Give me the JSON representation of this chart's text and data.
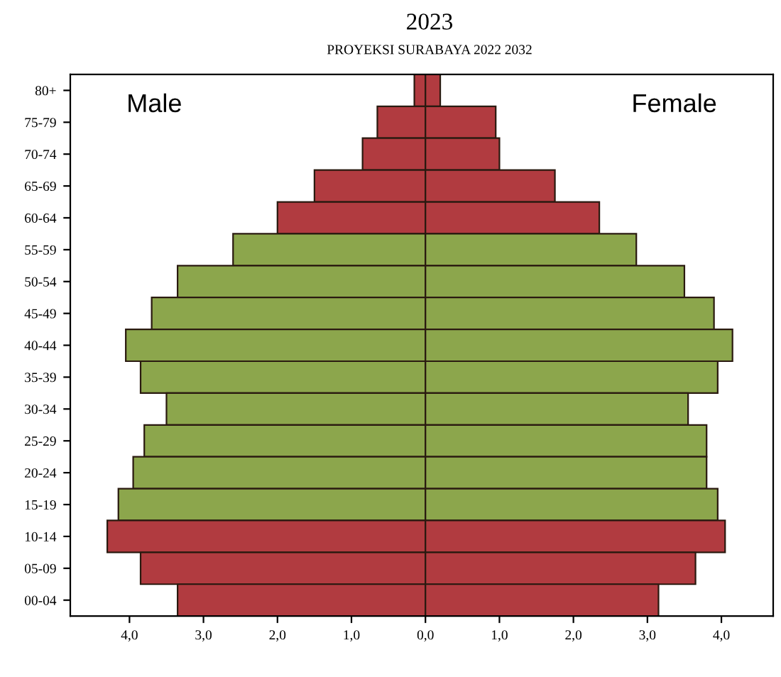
{
  "chart_data": {
    "type": "bar",
    "orientation": "horizontal",
    "title": "2023",
    "subtitle": "PROYEKSI SURABAYA 2022 2032",
    "stacked": true,
    "annotations": [
      "Male",
      "Female"
    ],
    "categories": [
      "80+",
      "75-79",
      "70-74",
      "65-69",
      "60-64",
      "55-59",
      "50-54",
      "45-49",
      "40-44",
      "35-39",
      "30-34",
      "25-29",
      "20-24",
      "15-19",
      "10-14",
      "05-09",
      "00-04"
    ],
    "series": [
      {
        "values": [
          -0.15,
          -0.65,
          -0.85,
          -1.5,
          -2.0,
          -2.6,
          -3.35,
          -3.7,
          -4.05,
          -3.85,
          -3.5,
          -3.8,
          -3.95,
          -4.15,
          -4.3,
          -3.85,
          -3.35
        ],
        "colors": [
          "#b13b40",
          "#b13b40",
          "#b13b40",
          "#b13b40",
          "#b13b40",
          "#8ca64c",
          "#8ca64c",
          "#8ca64c",
          "#8ca64c",
          "#8ca64c",
          "#8ca64c",
          "#8ca64c",
          "#8ca64c",
          "#8ca64c",
          "#b13b40",
          "#b13b40",
          "#b13b40"
        ]
      },
      {
        "values": [
          0.2,
          0.95,
          1.0,
          1.75,
          2.35,
          2.85,
          3.5,
          3.9,
          4.15,
          3.95,
          3.55,
          3.8,
          3.8,
          3.95,
          4.05,
          3.65,
          3.15
        ],
        "colors": [
          "#b13b40",
          "#b13b40",
          "#b13b40",
          "#b13b40",
          "#b13b40",
          "#8ca64c",
          "#8ca64c",
          "#8ca64c",
          "#8ca64c",
          "#8ca64c",
          "#8ca64c",
          "#8ca64c",
          "#8ca64c",
          "#8ca64c",
          "#b13b40",
          "#b13b40",
          "#b13b40"
        ]
      }
    ],
    "xlim": [
      -4.8,
      4.7
    ],
    "xticks": [
      {
        "value": -4,
        "label": "4,0"
      },
      {
        "value": -3,
        "label": "3,0"
      },
      {
        "value": -2,
        "label": "2,0"
      },
      {
        "value": -1,
        "label": "1,0"
      },
      {
        "value": 0,
        "label": "0,0"
      },
      {
        "value": 1,
        "label": "1,0"
      },
      {
        "value": 2,
        "label": "2,0"
      },
      {
        "value": 3,
        "label": "3,0"
      },
      {
        "value": 4,
        "label": "4,0"
      }
    ],
    "grid": false,
    "legend": false
  }
}
